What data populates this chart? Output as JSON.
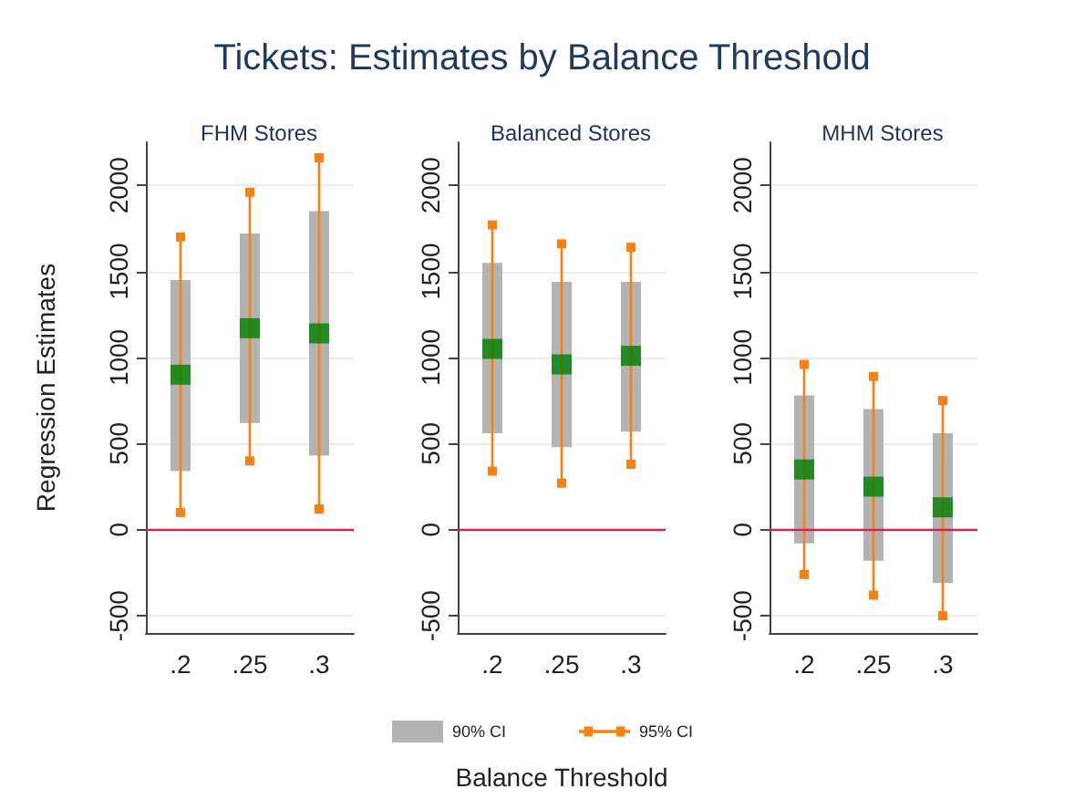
{
  "chart_data": [
    {
      "type": "bar",
      "title": "FHM Stores",
      "ylabel": "Regression Estimates",
      "annotations": [
        "Tickets: Estimates by Balance Threshold"
      ],
      "categories": [
        ".2",
        ".25",
        ".3"
      ],
      "ylim": [
        -600,
        2250
      ],
      "yticks": [
        -500,
        0,
        500,
        1000,
        1500,
        2000
      ],
      "grid": "y",
      "legend": false,
      "ref_lines": [
        {
          "axis": "y",
          "value": 0,
          "color": "#d6204d"
        }
      ],
      "series": [
        {
          "base": [
            340,
            620,
            430
          ],
          "values": [
            1110,
            1100,
            1420
          ],
          "color": "#b3b3b3"
        },
        {
          "type": "line",
          "x": [
            ".2",
            ".2",
            ".2",
            ".25",
            ".25",
            ".25",
            ".3",
            ".3"
          ],
          "values": [
            100,
            1700,
            null,
            400,
            1960,
            null,
            120,
            2160
          ],
          "color": "#ff7f0e",
          "marker": "square"
        },
        {
          "type": "scatter",
          "x": [
            ".2",
            ".25",
            ".3"
          ],
          "values": [
            900,
            1170,
            1140
          ],
          "color": "#008000",
          "marker": "square"
        }
      ]
    },
    {
      "type": "bar",
      "title": "Balanced Stores",
      "xlabel": "Balance Threshold",
      "categories": [
        ".2",
        ".25",
        ".3"
      ],
      "ylim": [
        -600,
        2250
      ],
      "yticks": [
        -500,
        0,
        500,
        1000,
        1500,
        2000
      ],
      "grid": "y",
      "legend": "bottom",
      "ref_lines": [
        {
          "axis": "y",
          "value": 0,
          "color": "#d6204d"
        }
      ],
      "series": [
        {
          "name": "90% CI",
          "base": [
            560,
            480,
            570
          ],
          "values": [
            990,
            960,
            870
          ],
          "color": "#b3b3b3"
        },
        {
          "name": "95% CI",
          "type": "line",
          "x": [
            ".2",
            ".2",
            ".2",
            ".25",
            ".25",
            ".25",
            ".3",
            ".3"
          ],
          "values": [
            340,
            1770,
            null,
            270,
            1660,
            null,
            380,
            1640
          ],
          "color": "#ff7f0e",
          "marker": "square"
        },
        {
          "type": "scatter",
          "x": [
            ".2",
            ".25",
            ".3"
          ],
          "values": [
            1050,
            960,
            1010
          ],
          "color": "#008000",
          "marker": "square"
        }
      ]
    },
    {
      "type": "bar",
      "title": "MHM Stores",
      "categories": [
        ".2",
        ".25",
        ".3"
      ],
      "ylim": [
        -600,
        2250
      ],
      "yticks": [
        -500,
        0,
        500,
        1000,
        1500,
        2000
      ],
      "grid": "y",
      "legend": false,
      "ref_lines": [
        {
          "axis": "y",
          "value": 0,
          "color": "#d6204d"
        }
      ],
      "series": [
        {
          "base": [
            -80,
            -180,
            -310
          ],
          "values": [
            860,
            880,
            870
          ],
          "color": "#b3b3b3"
        },
        {
          "type": "line",
          "x": [
            ".2",
            ".2",
            ".2",
            ".25",
            ".25",
            ".25",
            ".3",
            ".3"
          ],
          "values": [
            -260,
            960,
            null,
            -380,
            890,
            null,
            -500,
            750
          ],
          "color": "#ff7f0e",
          "marker": "square"
        },
        {
          "type": "scatter",
          "x": [
            ".2",
            ".25",
            ".3"
          ],
          "values": [
            350,
            250,
            130
          ],
          "color": "#008000",
          "marker": "square"
        }
      ]
    }
  ]
}
